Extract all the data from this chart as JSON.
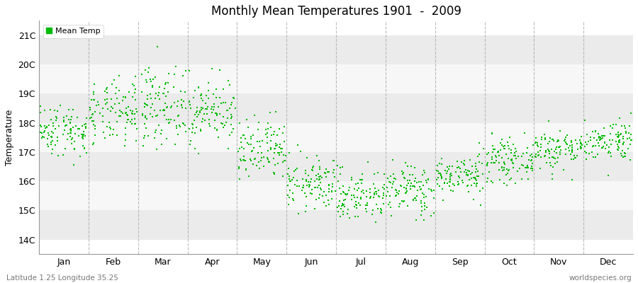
{
  "title": "Monthly Mean Temperatures 1901  -  2009",
  "ylabel": "Temperature",
  "xlabel_labels": [
    "Jan",
    "Feb",
    "Mar",
    "Apr",
    "May",
    "Jun",
    "Jul",
    "Aug",
    "Sep",
    "Oct",
    "Nov",
    "Dec"
  ],
  "ytick_labels": [
    "14C",
    "15C",
    "16C",
    "17C",
    "18C",
    "19C",
    "20C",
    "21C"
  ],
  "ytick_values": [
    14,
    15,
    16,
    17,
    18,
    19,
    20,
    21
  ],
  "ylim": [
    13.5,
    21.5
  ],
  "dot_color": "#00bb00",
  "bg_color": "#ffffff",
  "plot_bg_color": "#ffffff",
  "legend_label": "Mean Temp",
  "footer_left": "Latitude 1.25 Longitude 35.25",
  "footer_right": "worldspecies.org",
  "n_years": 109,
  "seed": 42,
  "monthly_means": [
    17.75,
    18.3,
    18.6,
    18.4,
    17.0,
    15.9,
    15.5,
    15.7,
    16.2,
    16.7,
    17.1,
    17.4
  ],
  "monthly_stds": [
    0.45,
    0.55,
    0.65,
    0.55,
    0.55,
    0.45,
    0.45,
    0.45,
    0.35,
    0.35,
    0.35,
    0.35
  ],
  "band_colors": [
    "#ebebeb",
    "#f7f7f7"
  ],
  "vline_color": "#aaaaaa",
  "spine_color": "#999999"
}
